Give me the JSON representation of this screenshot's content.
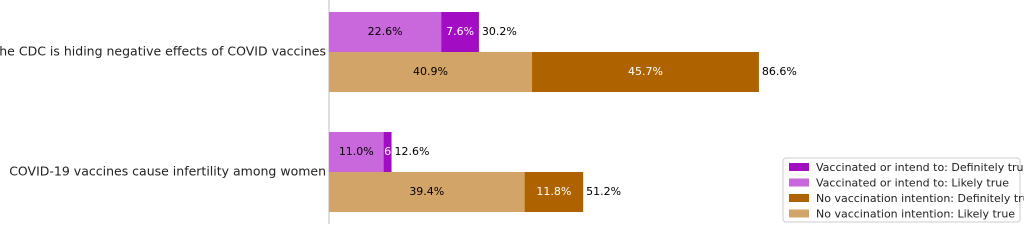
{
  "chart_data": {
    "type": "stacked_barh",
    "categories": [
      "The CDC is hiding negative effects of COVID vaccines",
      "COVID-19 vaccines cause infertility among women"
    ],
    "xlim": [
      0,
      140
    ],
    "groups": [
      {
        "series": [
          {
            "name": "Vaccinated or intend to: Likely true",
            "color": "#c967dc",
            "label_color": "#000000",
            "values": [
              22.6,
              11.0
            ],
            "value_labels": [
              "22.6%",
              "11.0%"
            ]
          },
          {
            "name": "Vaccinated or intend to: Definitely true",
            "color": "#a20cc2",
            "label_color": "#ffffff",
            "values": [
              7.6,
              1.6
            ],
            "value_labels": [
              "7.6%",
              "1.6%"
            ]
          }
        ],
        "totals": {
          "values": [
            30.2,
            12.6
          ],
          "value_labels": [
            "30.2%",
            "12.6%"
          ]
        }
      },
      {
        "series": [
          {
            "name": "No vaccination intention: Likely true",
            "color": "#d3a467",
            "label_color": "#000000",
            "values": [
              40.9,
              39.4
            ],
            "value_labels": [
              "40.9%",
              "39.4%"
            ]
          },
          {
            "name": "No vaccination intention: Definitely true",
            "color": "#ae6300",
            "label_color": "#ffffff",
            "values": [
              45.7,
              11.8
            ],
            "value_labels": [
              "45.7%",
              "11.8%"
            ]
          }
        ],
        "totals": {
          "values": [
            86.6,
            51.2
          ],
          "value_labels": [
            "86.6%",
            "51.2%"
          ]
        }
      }
    ]
  }
}
